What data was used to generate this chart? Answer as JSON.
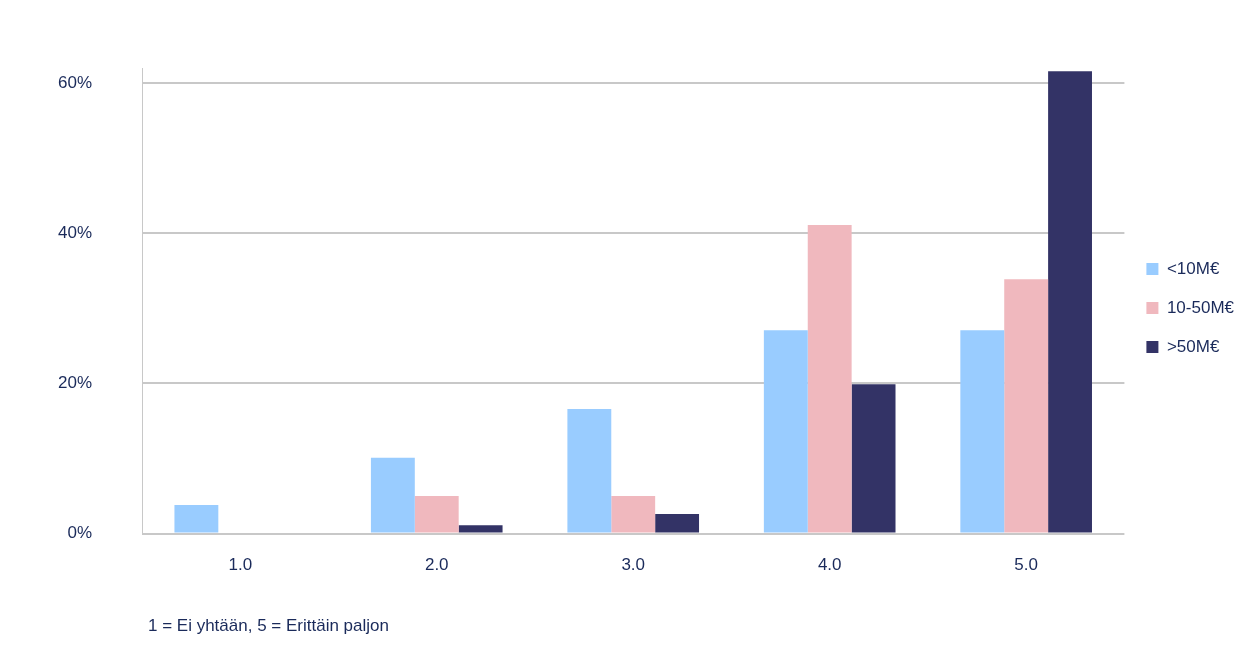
{
  "chart_data": {
    "type": "bar",
    "categories": [
      "1.0",
      "2.0",
      "3.0",
      "4.0",
      "5.0"
    ],
    "series": [
      {
        "name": "<10M€",
        "color": "#99ccff",
        "values": [
          3.8,
          10.1,
          16.6,
          27.1,
          27.1
        ]
      },
      {
        "name": "10-50M€",
        "color": "#f0b8be",
        "values": [
          0,
          5.0,
          5.0,
          41.1,
          33.9
        ]
      },
      {
        "name": ">50M€",
        "color": "#333366",
        "values": [
          0,
          1.1,
          2.6,
          19.9,
          61.6
        ]
      }
    ],
    "ylim": [
      0,
      62
    ],
    "yticks": [
      {
        "value": 0,
        "label": "0%"
      },
      {
        "value": 20,
        "label": "20%"
      },
      {
        "value": 40,
        "label": "40%"
      },
      {
        "value": 60,
        "label": "60%"
      }
    ],
    "grid": "y",
    "legend": "right",
    "annotations": [
      "1 = Ei yhtään, 5 = Erittäin paljon"
    ]
  }
}
